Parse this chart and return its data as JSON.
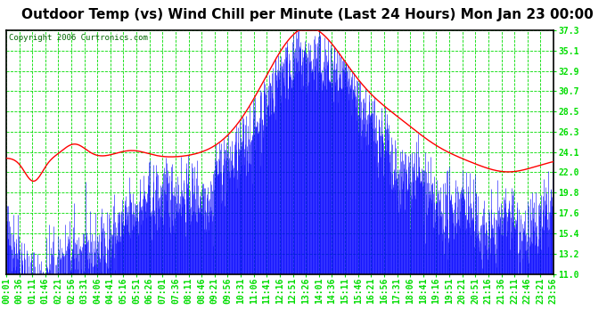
{
  "title": "Outdoor Temp (vs) Wind Chill per Minute (Last 24 Hours) Mon Jan 23 00:00",
  "copyright": "Copyright 2006 Curtronics.com",
  "ylim": [
    11.0,
    37.3
  ],
  "yticks": [
    11.0,
    13.2,
    15.4,
    17.6,
    19.8,
    22.0,
    24.1,
    26.3,
    28.5,
    30.7,
    32.9,
    35.1,
    37.3
  ],
  "xtick_labels": [
    "00:01",
    "00:36",
    "01:11",
    "01:46",
    "02:21",
    "02:56",
    "03:31",
    "04:06",
    "04:41",
    "05:16",
    "05:51",
    "06:26",
    "07:01",
    "07:36",
    "08:11",
    "08:46",
    "09:21",
    "09:56",
    "10:31",
    "11:06",
    "11:41",
    "12:16",
    "12:51",
    "13:26",
    "14:01",
    "14:36",
    "15:11",
    "15:46",
    "16:21",
    "16:56",
    "17:31",
    "18:06",
    "18:41",
    "19:16",
    "19:51",
    "20:21",
    "20:51",
    "21:16",
    "21:36",
    "22:11",
    "22:46",
    "23:21",
    "23:56"
  ],
  "plot_bg": "#ffffff",
  "outer_bg": "#ffffff",
  "grid_color": "#00dd00",
  "title_color": "#000000",
  "line_color_blue": "#0000ff",
  "line_color_red": "#ff0000",
  "tick_color": "#00cc00",
  "ylabel_color": "#00cc00",
  "copyright_color": "#006600",
  "title_fontsize": 11,
  "tick_fontsize": 7,
  "n_minutes": 1440
}
